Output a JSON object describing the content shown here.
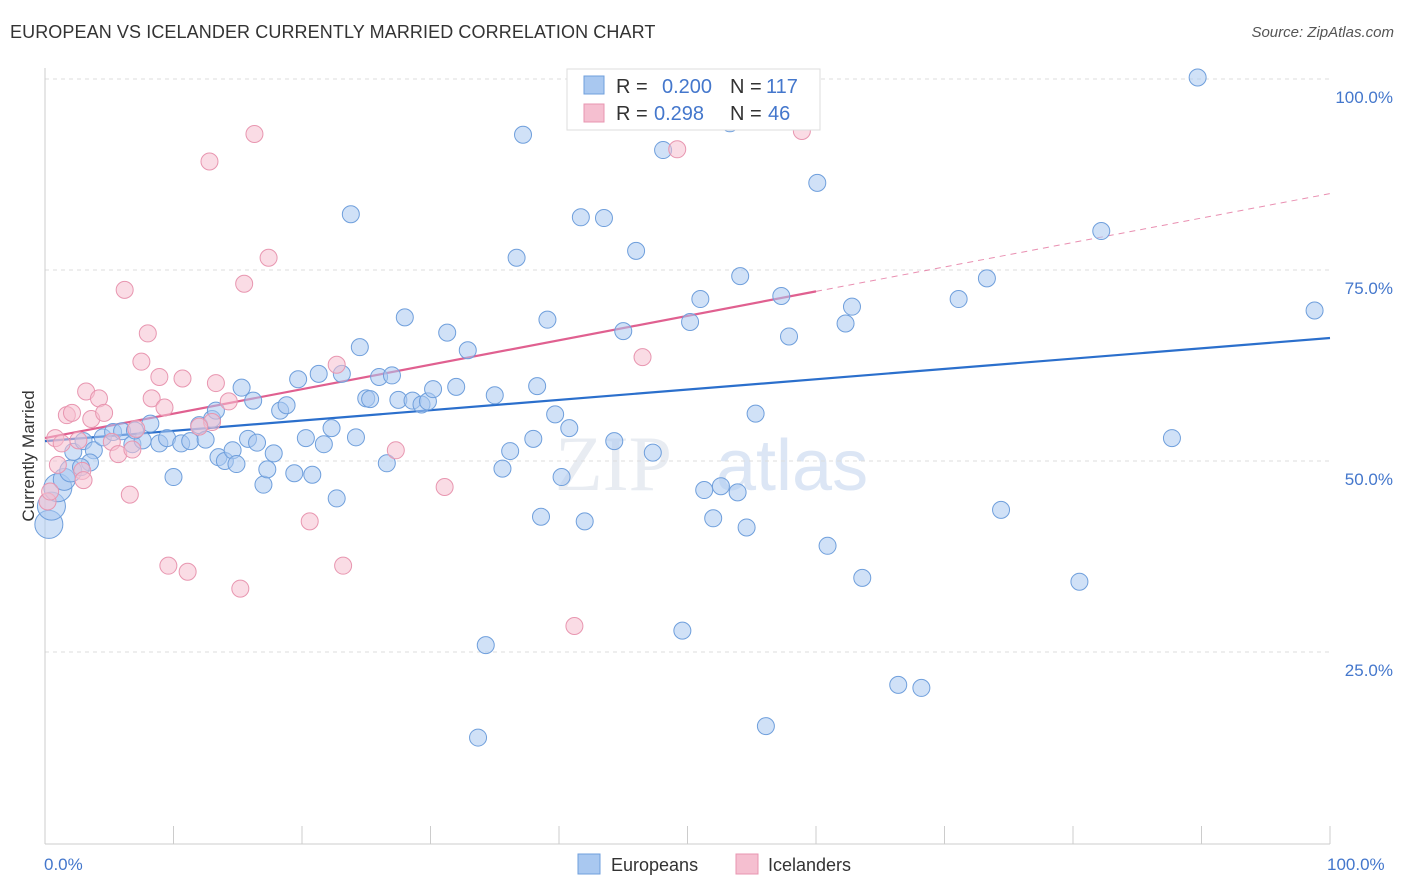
{
  "title": "EUROPEAN VS ICELANDER CURRENTLY MARRIED CORRELATION CHART",
  "source": "Source: ZipAtlas.com",
  "watermark": {
    "zip": "ZIP",
    "atlas": "atlas"
  },
  "colors": {
    "blue_fill": "#a9c8f0",
    "blue_stroke": "#6f9fdc",
    "blue_line": "#2b6fcc",
    "pink_fill": "#f5bfd0",
    "pink_stroke": "#e896b0",
    "pink_line": "#e06090",
    "grid": "#dddddd",
    "tick_text": "#4477cc"
  },
  "legend": {
    "r_label": "R =",
    "n_label": "N =",
    "rows": [
      {
        "series": "Europeans",
        "r": "0.200",
        "n": "117"
      },
      {
        "series": "Icelanders",
        "r": "0.298",
        "n": "46"
      }
    ]
  },
  "chart_data": {
    "type": "scatter",
    "title": "EUROPEAN VS ICELANDER CURRENTLY MARRIED CORRELATION CHART",
    "xlabel": "",
    "ylabel": "Currently Married",
    "xlim": [
      0,
      100
    ],
    "ylim": [
      0,
      102
    ],
    "x_tick_labels": [
      "0.0%",
      "100.0%"
    ],
    "y_ticks": [
      25,
      50,
      75,
      100
    ],
    "y_tick_labels": [
      "25.0%",
      "50.0%",
      "75.0%",
      "100.0%"
    ],
    "series": [
      {
        "name": "Europeans",
        "r": 0.2,
        "n": 117,
        "trend": {
          "x": [
            0,
            100
          ],
          "y": [
            52.6,
            66.1
          ]
        },
        "points": [
          [
            0.3,
            41.7
          ],
          [
            0.5,
            44.1
          ],
          [
            1.0,
            46.5
          ],
          [
            1.5,
            47.6
          ],
          [
            2.0,
            48.7
          ],
          [
            2.2,
            51.2
          ],
          [
            3.0,
            52.6
          ],
          [
            3.8,
            51.4
          ],
          [
            4.5,
            53.1
          ],
          [
            5.3,
            53.8
          ],
          [
            6.0,
            53.9
          ],
          [
            6.8,
            52.2
          ],
          [
            7.6,
            52.7
          ],
          [
            8.2,
            54.9
          ],
          [
            8.9,
            52.3
          ],
          [
            9.5,
            53.0
          ],
          [
            10.0,
            47.9
          ],
          [
            10.6,
            52.3
          ],
          [
            11.3,
            52.6
          ],
          [
            12.0,
            54.7
          ],
          [
            12.5,
            52.8
          ],
          [
            13.0,
            55.5
          ],
          [
            13.3,
            56.6
          ],
          [
            13.5,
            50.5
          ],
          [
            14.0,
            50.0
          ],
          [
            14.6,
            51.4
          ],
          [
            14.9,
            49.6
          ],
          [
            15.3,
            59.6
          ],
          [
            15.8,
            52.9
          ],
          [
            16.2,
            57.9
          ],
          [
            17.0,
            46.9
          ],
          [
            17.3,
            48.9
          ],
          [
            17.8,
            51.0
          ],
          [
            18.3,
            56.6
          ],
          [
            18.8,
            57.3
          ],
          [
            19.4,
            48.4
          ],
          [
            19.7,
            60.7
          ],
          [
            20.3,
            53.0
          ],
          [
            20.8,
            48.2
          ],
          [
            21.3,
            61.4
          ],
          [
            21.7,
            52.2
          ],
          [
            22.3,
            54.3
          ],
          [
            22.7,
            45.1
          ],
          [
            23.1,
            61.4
          ],
          [
            23.8,
            82.3
          ],
          [
            24.2,
            53.1
          ],
          [
            24.5,
            64.9
          ],
          [
            25.0,
            58.2
          ],
          [
            25.3,
            58.1
          ],
          [
            26.0,
            61.0
          ],
          [
            26.6,
            49.7
          ],
          [
            27.0,
            61.2
          ],
          [
            27.5,
            58.0
          ],
          [
            28.0,
            68.8
          ],
          [
            28.6,
            57.9
          ],
          [
            29.3,
            57.4
          ],
          [
            29.8,
            57.8
          ],
          [
            30.2,
            59.4
          ],
          [
            31.3,
            66.8
          ],
          [
            32.0,
            59.7
          ],
          [
            32.9,
            64.5
          ],
          [
            33.7,
            13.8
          ],
          [
            34.3,
            25.9
          ],
          [
            35.0,
            58.6
          ],
          [
            35.6,
            49.0
          ],
          [
            36.2,
            51.3
          ],
          [
            36.7,
            76.6
          ],
          [
            37.2,
            92.7
          ],
          [
            38.0,
            52.9
          ],
          [
            38.3,
            59.8
          ],
          [
            38.6,
            42.7
          ],
          [
            39.1,
            68.5
          ],
          [
            39.7,
            56.1
          ],
          [
            40.2,
            47.9
          ],
          [
            40.8,
            54.3
          ],
          [
            41.7,
            81.9
          ],
          [
            42.0,
            42.1
          ],
          [
            43.5,
            81.8
          ],
          [
            44.3,
            52.6
          ],
          [
            45.0,
            67.0
          ],
          [
            46.0,
            77.5
          ],
          [
            47.3,
            51.1
          ],
          [
            48.1,
            90.7
          ],
          [
            49.0,
            100.0
          ],
          [
            49.6,
            27.8
          ],
          [
            50.2,
            68.2
          ],
          [
            51.0,
            71.2
          ],
          [
            51.3,
            46.2
          ],
          [
            52.0,
            42.5
          ],
          [
            52.6,
            46.7
          ],
          [
            53.3,
            94.2
          ],
          [
            53.9,
            45.9
          ],
          [
            54.1,
            74.2
          ],
          [
            54.6,
            41.3
          ],
          [
            55.3,
            56.2
          ],
          [
            56.1,
            15.3
          ],
          [
            57.3,
            71.6
          ],
          [
            57.9,
            66.3
          ],
          [
            60.1,
            86.4
          ],
          [
            60.9,
            38.9
          ],
          [
            62.3,
            68.0
          ],
          [
            62.8,
            70.2
          ],
          [
            63.6,
            34.7
          ],
          [
            66.4,
            20.7
          ],
          [
            68.2,
            20.3
          ],
          [
            71.1,
            71.2
          ],
          [
            73.3,
            73.9
          ],
          [
            74.4,
            43.6
          ],
          [
            80.5,
            34.2
          ],
          [
            82.2,
            80.1
          ],
          [
            87.7,
            53.0
          ],
          [
            89.7,
            100.2
          ],
          [
            98.8,
            69.7
          ],
          [
            3.5,
            49.8
          ],
          [
            2.8,
            49.2
          ],
          [
            7.0,
            54.0
          ],
          [
            16.5,
            52.4
          ]
        ]
      },
      {
        "name": "Icelanders",
        "r": 0.298,
        "n": 46,
        "trend": {
          "x": [
            0,
            60
          ],
          "y": [
            53.0,
            72.2
          ]
        },
        "trend_dashed": {
          "x": [
            60,
            100
          ],
          "y": [
            72.2,
            85.0
          ]
        },
        "points": [
          [
            0.2,
            44.7
          ],
          [
            0.4,
            46.0
          ],
          [
            0.8,
            53.0
          ],
          [
            1.3,
            52.3
          ],
          [
            1.7,
            56.0
          ],
          [
            2.1,
            56.3
          ],
          [
            2.6,
            52.7
          ],
          [
            2.9,
            48.7
          ],
          [
            3.2,
            59.1
          ],
          [
            3.6,
            55.5
          ],
          [
            4.2,
            58.2
          ],
          [
            4.6,
            56.3
          ],
          [
            5.2,
            52.5
          ],
          [
            5.7,
            50.9
          ],
          [
            6.2,
            72.4
          ],
          [
            6.6,
            45.6
          ],
          [
            7.1,
            54.2
          ],
          [
            7.5,
            63.0
          ],
          [
            8.0,
            66.7
          ],
          [
            8.3,
            58.2
          ],
          [
            8.9,
            61.0
          ],
          [
            9.3,
            57.0
          ],
          [
            9.6,
            36.3
          ],
          [
            10.7,
            60.8
          ],
          [
            11.1,
            35.5
          ],
          [
            12.8,
            89.2
          ],
          [
            13.0,
            55.1
          ],
          [
            13.3,
            60.2
          ],
          [
            14.3,
            57.8
          ],
          [
            15.2,
            33.3
          ],
          [
            15.5,
            73.2
          ],
          [
            16.3,
            92.8
          ],
          [
            17.4,
            76.6
          ],
          [
            20.6,
            42.1
          ],
          [
            22.7,
            62.6
          ],
          [
            23.2,
            36.3
          ],
          [
            27.3,
            51.4
          ],
          [
            31.1,
            46.6
          ],
          [
            41.2,
            28.4
          ],
          [
            46.5,
            63.6
          ],
          [
            49.2,
            90.8
          ],
          [
            58.9,
            93.2
          ],
          [
            1.0,
            49.5
          ],
          [
            3.0,
            47.5
          ],
          [
            6.8,
            51.5
          ],
          [
            12.0,
            54.5
          ]
        ]
      }
    ]
  },
  "bottom_legend": [
    "Europeans",
    "Icelanders"
  ]
}
